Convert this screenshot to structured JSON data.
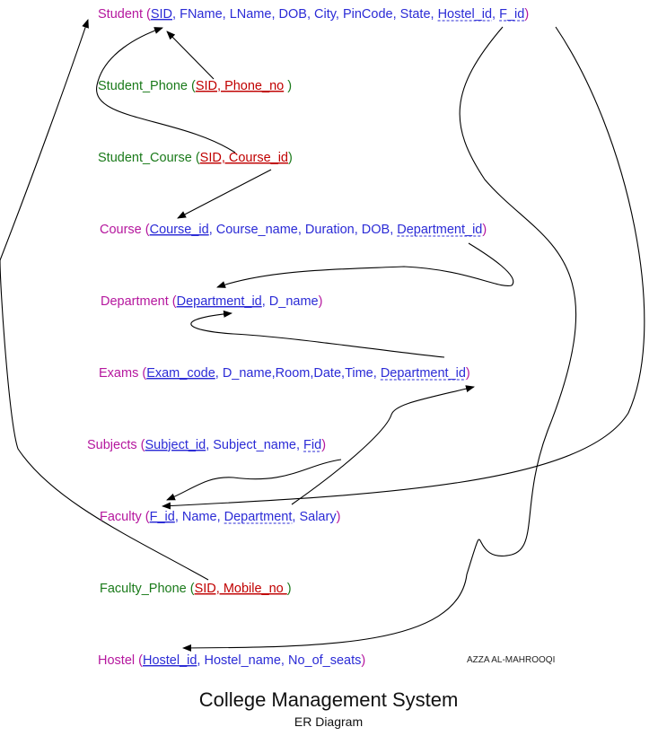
{
  "colors": {
    "purple": "#b5179e",
    "green": "#1a7a1a",
    "blue": "#2b2bd6",
    "red": "#c00000",
    "black": "#000000",
    "dark": "#222222"
  },
  "relations": [
    {
      "id": "student",
      "name": "Student",
      "name_color": "purple",
      "attr_color": "blue",
      "attrs": [
        {
          "text": "SID",
          "style": "u"
        },
        {
          "text": "FName"
        },
        {
          "text": "LName"
        },
        {
          "text": "DOB"
        },
        {
          "text": "City"
        },
        {
          "text": "PinCode"
        },
        {
          "text": "State"
        },
        {
          "text": "Hostel_id",
          "style": "dash"
        },
        {
          "text": "F_id",
          "style": "dash"
        }
      ]
    },
    {
      "id": "student_phone",
      "name": "Student_Phone",
      "name_color": "green",
      "attr_color": "red",
      "keylist": "SID, Phone_no",
      "close": " )"
    },
    {
      "id": "student_course",
      "name": "Student_Course",
      "name_color": "green",
      "attr_color": "red",
      "keylist": "SID, Course_id",
      "close": ")"
    },
    {
      "id": "course",
      "name": "Course",
      "name_color": "purple",
      "attr_color": "blue",
      "attrs": [
        {
          "text": "Course_id",
          "style": "u"
        },
        {
          "text": "Course_name"
        },
        {
          "text": "Duration"
        },
        {
          "text": "DOB"
        },
        {
          "text": "Department_id",
          "style": "dash"
        }
      ]
    },
    {
      "id": "department",
      "name": "Department",
      "name_color": "purple",
      "attr_color": "blue",
      "attrs": [
        {
          "text": "Department_id",
          "style": "u"
        },
        {
          "text": "D_name"
        }
      ]
    },
    {
      "id": "exams",
      "name": "Exams",
      "name_color": "purple",
      "attr_color": "blue",
      "attrs": [
        {
          "text": "Exam_code",
          "style": "u"
        },
        {
          "text": "D_name",
          "sep": ","
        },
        {
          "text": "Room",
          "sep": ","
        },
        {
          "text": "Date",
          "sep": ","
        },
        {
          "text": "Time"
        },
        {
          "text": "Department_id",
          "style": "dash"
        }
      ]
    },
    {
      "id": "subjects",
      "name": "Subjects",
      "name_color": "purple",
      "attr_color": "blue",
      "attrs": [
        {
          "text": "Subject_id",
          "style": "u"
        },
        {
          "text": "Subject_name"
        },
        {
          "text": "Fid",
          "style": "dash"
        }
      ]
    },
    {
      "id": "faculty",
      "name": "Faculty",
      "name_color": "purple",
      "attr_color": "blue",
      "attrs": [
        {
          "text": "F_id",
          "style": "u"
        },
        {
          "text": "Name"
        },
        {
          "text": "Department",
          "style": "dash"
        },
        {
          "text": "Salary"
        }
      ]
    },
    {
      "id": "faculty_phone",
      "name": "Faculty_Phone",
      "name_color": "green",
      "attr_color": "red",
      "keylist": "SID, Mobile_no ",
      "close": ")"
    },
    {
      "id": "hostel",
      "name": "Hostel",
      "name_color": "purple",
      "attr_color": "blue",
      "attrs": [
        {
          "text": "Hostel_id",
          "style": "u"
        },
        {
          "text": "Hostel_name"
        },
        {
          "text": "No_of_seats"
        }
      ]
    }
  ],
  "credit": "AZZA AL-MAHROOQI",
  "title": "College Management System",
  "subtitle": "ER Diagram"
}
